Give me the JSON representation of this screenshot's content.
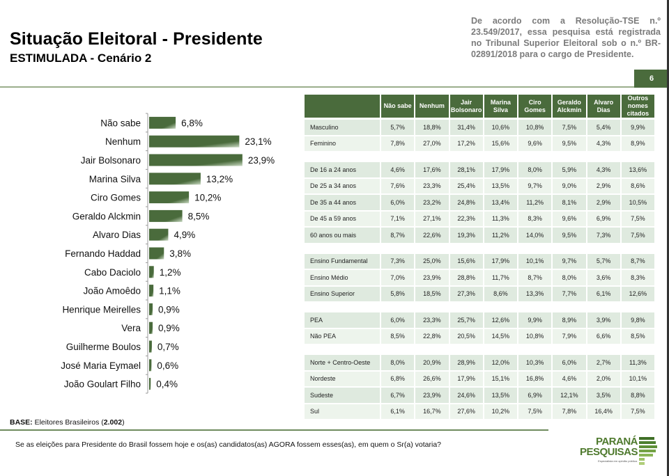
{
  "header": {
    "title": "Situação Eleitoral - Presidente",
    "subtitle": "ESTIMULADA - Cenário 2",
    "tse_note": "De acordo com a Resolução-TSE n.º 23.549/2017, essa pesquisa está registrada no Tribunal Superior Eleitoral sob o n.º BR-02891/2018 para o cargo de Presidente.",
    "page_number": "6"
  },
  "chart_data": {
    "type": "bar",
    "orientation": "horizontal",
    "title": "Situação Eleitoral - Presidente — ESTIMULADA - Cenário 2",
    "xlabel": "",
    "ylabel": "",
    "unit": "%",
    "categories": [
      "Não sabe",
      "Nenhum",
      "Jair Bolsonaro",
      "Marina Silva",
      "Ciro Gomes",
      "Geraldo Alckmin",
      "Alvaro Dias",
      "Fernando Haddad",
      "Cabo Daciolo",
      "João Amoêdo",
      "Henrique Meirelles",
      "Vera",
      "Guilherme Boulos",
      "José Maria Eymael",
      "João Goulart Filho"
    ],
    "values": [
      6.8,
      23.1,
      23.9,
      13.2,
      10.2,
      8.5,
      4.9,
      3.8,
      1.2,
      1.1,
      0.9,
      0.9,
      0.7,
      0.6,
      0.4
    ],
    "value_labels": [
      "6,8%",
      "23,1%",
      "23,9%",
      "13,2%",
      "10,2%",
      "8,5%",
      "4,9%",
      "3,8%",
      "1,2%",
      "1,1%",
      "0,9%",
      "0,9%",
      "0,7%",
      "0,6%",
      "0,4%"
    ],
    "xlim": [
      0,
      25
    ],
    "grid": false,
    "legend": "none",
    "bar_color": "#4a6b3c"
  },
  "table": {
    "columns": [
      "Não sabe",
      "Nenhum",
      "Jair Bolsonaro",
      "Marina Silva",
      "Ciro Gomes",
      "Geraldo Alckmin",
      "Alvaro Dias",
      "Outros nomes citados"
    ],
    "groups": [
      {
        "rows": [
          {
            "label": "Masculino",
            "values": [
              "5,7%",
              "18,8%",
              "31,4%",
              "10,6%",
              "10,8%",
              "7,5%",
              "5,4%",
              "9,9%"
            ]
          },
          {
            "label": "Feminino",
            "values": [
              "7,8%",
              "27,0%",
              "17,2%",
              "15,6%",
              "9,6%",
              "9,5%",
              "4,3%",
              "8,9%"
            ]
          }
        ]
      },
      {
        "rows": [
          {
            "label": "De 16 a 24 anos",
            "values": [
              "4,6%",
              "17,6%",
              "28,1%",
              "17,9%",
              "8,0%",
              "5,9%",
              "4,3%",
              "13,6%"
            ]
          },
          {
            "label": "De 25 a 34 anos",
            "values": [
              "7,6%",
              "23,3%",
              "25,4%",
              "13,5%",
              "9,7%",
              "9,0%",
              "2,9%",
              "8,6%"
            ]
          },
          {
            "label": "De 35 a 44 anos",
            "values": [
              "6,0%",
              "23,2%",
              "24,8%",
              "13,4%",
              "11,2%",
              "8,1%",
              "2,9%",
              "10,5%"
            ]
          },
          {
            "label": "De 45 a 59 anos",
            "values": [
              "7,1%",
              "27,1%",
              "22,3%",
              "11,3%",
              "8,3%",
              "9,6%",
              "6,9%",
              "7,5%"
            ]
          },
          {
            "label": "60 anos ou mais",
            "values": [
              "8,7%",
              "22,6%",
              "19,3%",
              "11,2%",
              "14,0%",
              "9,5%",
              "7,3%",
              "7,5%"
            ]
          }
        ]
      },
      {
        "rows": [
          {
            "label": "Ensino Fundamental",
            "values": [
              "7,3%",
              "25,0%",
              "15,6%",
              "17,9%",
              "10,1%",
              "9,7%",
              "5,7%",
              "8,7%"
            ]
          },
          {
            "label": "Ensino Médio",
            "values": [
              "7,0%",
              "23,9%",
              "28,8%",
              "11,7%",
              "8,7%",
              "8,0%",
              "3,6%",
              "8,3%"
            ]
          },
          {
            "label": "Ensino Superior",
            "values": [
              "5,8%",
              "18,5%",
              "27,3%",
              "8,6%",
              "13,3%",
              "7,7%",
              "6,1%",
              "12,6%"
            ]
          }
        ]
      },
      {
        "rows": [
          {
            "label": "PEA",
            "values": [
              "6,0%",
              "23,3%",
              "25,7%",
              "12,6%",
              "9,9%",
              "8,9%",
              "3,9%",
              "9,8%"
            ]
          },
          {
            "label": "Não PEA",
            "values": [
              "8,5%",
              "22,8%",
              "20,5%",
              "14,5%",
              "10,8%",
              "7,9%",
              "6,6%",
              "8,5%"
            ]
          }
        ]
      },
      {
        "rows": [
          {
            "label": "Norte + Centro-Oeste",
            "values": [
              "8,0%",
              "20,9%",
              "28,9%",
              "12,0%",
              "10,3%",
              "6,0%",
              "2,7%",
              "11,3%"
            ]
          },
          {
            "label": "Nordeste",
            "values": [
              "6,8%",
              "26,6%",
              "17,9%",
              "15,1%",
              "16,8%",
              "4,6%",
              "2,0%",
              "10,1%"
            ]
          },
          {
            "label": "Sudeste",
            "values": [
              "6,7%",
              "23,9%",
              "24,6%",
              "13,5%",
              "6,9%",
              "12,1%",
              "3,5%",
              "8,8%"
            ]
          },
          {
            "label": "Sul",
            "values": [
              "6,1%",
              "16,7%",
              "27,6%",
              "10,2%",
              "7,5%",
              "7,8%",
              "16,4%",
              "7,5%"
            ]
          }
        ]
      }
    ]
  },
  "footer": {
    "base_label": "BASE:",
    "base_text": "Eleitores Brasileiros (",
    "base_count": "2.002",
    "base_close": ")",
    "question": "Se as eleições para Presidente do Brasil fossem hoje e os(as) candidatos(as) AGORA fossem esses(as), em quem o Sr(a) votaria?"
  },
  "logo": {
    "line1": "PARANÁ",
    "line2": "PESQUISAS",
    "tagline": "Especialista em opinião pública.",
    "icon": "parana-pesquisas-logo-icon"
  }
}
